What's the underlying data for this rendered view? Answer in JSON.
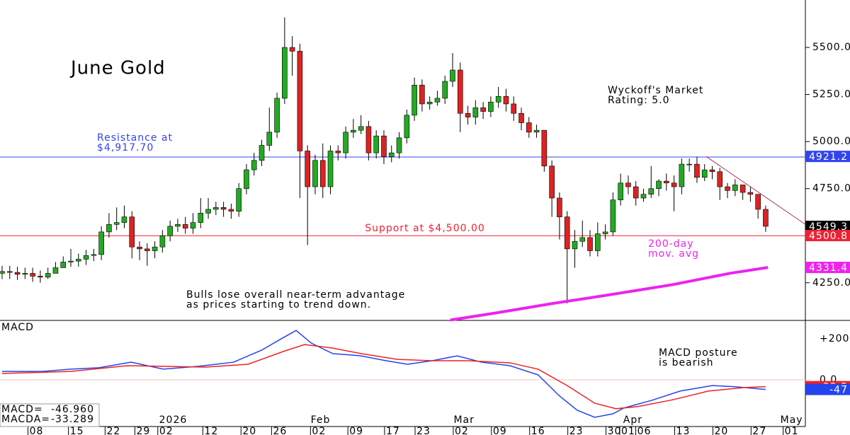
{
  "chart_data": {
    "type": "candlestick",
    "title": "June Gold",
    "xlim": [
      -0.278,
      105.2
    ],
    "xticks": [
      {
        "value": 4.5,
        "label": "08"
      },
      {
        "value": 9.8,
        "label": "15"
      },
      {
        "value": 14.6,
        "label": "22"
      },
      {
        "value": 18.5,
        "label": "29"
      },
      {
        "value": 21.5,
        "label": "02"
      },
      {
        "value": 27.4,
        "label": "12"
      },
      {
        "value": 32.4,
        "label": "20"
      },
      {
        "value": 36.4,
        "label": "26"
      },
      {
        "value": 41.5,
        "label": "02"
      },
      {
        "value": 46.4,
        "label": "09"
      },
      {
        "value": 51.2,
        "label": "17"
      },
      {
        "value": 55.2,
        "label": "23"
      },
      {
        "value": 60.2,
        "label": "02"
      },
      {
        "value": 65.2,
        "label": "09"
      },
      {
        "value": 70.2,
        "label": "16"
      },
      {
        "value": 75.2,
        "label": "23"
      },
      {
        "value": 80.2,
        "label": "30"
      },
      {
        "value": 82,
        "label": "01"
      },
      {
        "value": 84.1,
        "label": "06"
      },
      {
        "value": 89.2,
        "label": "13"
      },
      {
        "value": 94.2,
        "label": "20"
      },
      {
        "value": 99.2,
        "label": "27"
      },
      {
        "value": 103.4,
        "label": "01"
      }
    ],
    "months": [
      {
        "value": 22.4,
        "label": "2026"
      },
      {
        "value": 41.7,
        "label": "Feb"
      },
      {
        "value": 60.5,
        "label": "Mar"
      },
      {
        "value": 82.6,
        "label": "Apr"
      },
      {
        "value": 103.4,
        "label": "May"
      }
    ],
    "ylim": [
      4050,
      5752
    ],
    "yticks": [
      {
        "value": 5500,
        "label": "5500.0"
      },
      {
        "value": 5250,
        "label": "5250.0"
      },
      {
        "value": 5000,
        "label": "5000.0"
      },
      {
        "value": 4750,
        "label": "4750.0"
      },
      {
        "value": 4500,
        "label": "4500.0"
      },
      {
        "value": 4250,
        "label": "4250.0"
      }
    ],
    "up_color": "#22aa22",
    "down_color": "#dd2222",
    "open": [
      4300,
      4310,
      4305,
      4295,
      4300,
      4285,
      4280,
      4300,
      4330,
      4360,
      4365,
      4375,
      4395,
      4400,
      4520,
      4560,
      4570,
      4600,
      4440,
      4430,
      4420,
      4440,
      4500,
      4550,
      4560,
      4540,
      4570,
      4620,
      4640,
      4650,
      4640,
      4630,
      4750,
      4850,
      4900,
      4980,
      5050,
      5230,
      5500,
      5480,
      4950,
      4760,
      4900,
      4760,
      4950,
      4940,
      5050,
      5060,
      5080,
      4940,
      5030,
      4920,
      4940,
      5020,
      5140,
      5300,
      5200,
      5210,
      5230,
      5320,
      5380,
      5150,
      5130,
      5180,
      5160,
      5210,
      5240,
      5200,
      5150,
      5100,
      5050,
      5060,
      4870,
      4700,
      4600,
      4430,
      4470,
      4490,
      4420,
      4510,
      4520,
      4690,
      4780,
      4760,
      4700,
      4720,
      4750,
      4790,
      4780,
      4760,
      4880,
      4880,
      4810,
      4850,
      4840,
      4760,
      4740,
      4770,
      4730,
      4720,
      4640
    ],
    "high": [
      4340,
      4340,
      4335,
      4330,
      4330,
      4315,
      4330,
      4360,
      4390,
      4430,
      4405,
      4425,
      4430,
      4550,
      4620,
      4650,
      4660,
      4630,
      4470,
      4460,
      4470,
      4530,
      4580,
      4590,
      4600,
      4620,
      4700,
      4700,
      4680,
      4680,
      4670,
      4780,
      4880,
      4940,
      5010,
      5180,
      5260,
      5660,
      5560,
      5520,
      4980,
      4930,
      4990,
      4980,
      4980,
      5080,
      5120,
      5140,
      5110,
      5060,
      5060,
      4980,
      5050,
      5170,
      5340,
      5330,
      5240,
      5270,
      5350,
      5470,
      5420,
      5190,
      5220,
      5210,
      5240,
      5290,
      5280,
      5240,
      5180,
      5130,
      5090,
      5050,
      4900,
      4730,
      4630,
      4530,
      4580,
      4530,
      4570,
      4560,
      4730,
      4830,
      4820,
      4790,
      4750,
      4870,
      4800,
      4830,
      4820,
      4910,
      4910,
      4920,
      4880,
      4870,
      4860,
      4780,
      4800,
      4760,
      4760,
      4720,
      4660
    ],
    "low": [
      4270,
      4270,
      4265,
      4270,
      4255,
      4250,
      4270,
      4300,
      4330,
      4335,
      4335,
      4345,
      4365,
      4370,
      4490,
      4530,
      4540,
      4380,
      4370,
      4340,
      4380,
      4410,
      4470,
      4520,
      4510,
      4510,
      4540,
      4590,
      4610,
      4600,
      4590,
      4600,
      4720,
      4820,
      4870,
      4950,
      5020,
      5200,
      5350,
      4700,
      4450,
      4720,
      4700,
      4720,
      4900,
      4910,
      5020,
      5040,
      4900,
      4910,
      4880,
      4890,
      4910,
      4990,
      5110,
      5160,
      5170,
      5190,
      5200,
      5290,
      5050,
      5090,
      5090,
      5120,
      5130,
      5180,
      5160,
      5110,
      5060,
      5020,
      5020,
      4840,
      4600,
      4480,
      4140,
      4330,
      4440,
      4390,
      4390,
      4480,
      4500,
      4660,
      4720,
      4660,
      4680,
      4700,
      4710,
      4740,
      4630,
      4720,
      4840,
      4780,
      4790,
      4800,
      4690,
      4700,
      4710,
      4690,
      4680,
      4590,
      4520
    ],
    "close": [
      4310,
      4305,
      4295,
      4300,
      4285,
      4280,
      4300,
      4330,
      4360,
      4365,
      4375,
      4395,
      4400,
      4520,
      4560,
      4570,
      4600,
      4440,
      4430,
      4420,
      4440,
      4500,
      4550,
      4560,
      4540,
      4570,
      4620,
      4640,
      4650,
      4640,
      4630,
      4750,
      4850,
      4900,
      4980,
      5050,
      5230,
      5500,
      5480,
      4950,
      4760,
      4900,
      4760,
      4950,
      4940,
      5050,
      5060,
      5080,
      4940,
      5030,
      4920,
      4940,
      5020,
      5140,
      5300,
      5200,
      5210,
      5230,
      5320,
      5380,
      5150,
      5130,
      5180,
      5160,
      5210,
      5240,
      5200,
      5150,
      5100,
      5050,
      5060,
      4870,
      4700,
      4600,
      4430,
      4470,
      4490,
      4420,
      4510,
      4520,
      4690,
      4780,
      4760,
      4700,
      4720,
      4750,
      4790,
      4780,
      4760,
      4880,
      4880,
      4810,
      4850,
      4840,
      4760,
      4740,
      4770,
      4730,
      4720,
      4640,
      4550
    ],
    "ma200": {
      "color": "#ee22ee",
      "x": [
        58.7,
        64.7,
        72.1,
        78.6,
        87.8,
        95.3,
        100.3
      ],
      "values": [
        4052,
        4090,
        4140,
        4180,
        4240,
        4300,
        4331.4
      ]
    },
    "trendline": {
      "color": "#aa3355",
      "x": [
        92.2,
        105.2
      ],
      "values": [
        4921,
        4560
      ]
    },
    "levels": [
      {
        "value": 4917.7,
        "color": "#3344ee"
      },
      {
        "value": 4500,
        "color": "#ee2233"
      }
    ],
    "price_tags": [
      {
        "value": 4921.2,
        "color": "#3344ee"
      },
      {
        "value": 4549.3,
        "color": "#000000"
      },
      {
        "value": 4500.8,
        "color": "#ee2233"
      },
      {
        "value": 4331.4,
        "color": "#ee22ee"
      }
    ],
    "annotations": [
      {
        "lines": [
          "Resistance at",
          "$4,917.70"
        ],
        "color": "#3344ee"
      },
      {
        "lines": [
          "Support at $4,500.00"
        ],
        "color": "#ee2233"
      },
      {
        "lines": [
          "Wyckoff's Market",
          "Rating: 5.0"
        ],
        "color": "#000000"
      },
      {
        "lines": [
          "200-day",
          "mov. avg"
        ],
        "color": "#ee22ee"
      },
      {
        "lines": [
          "Bulls lose overall near-term advantage",
          "as prices starting to trend down."
        ],
        "color": "#000000"
      }
    ],
    "macd": {
      "title": "MACD",
      "ylim": [
        -228,
        290
      ],
      "yticks": [
        {
          "value": 200,
          "label": "+200.0"
        },
        {
          "value": 0,
          "label": "0.0"
        }
      ],
      "series": [
        {
          "name": "MACD",
          "color": "#2244ee",
          "x": [
            0,
            5.3,
            9,
            12.7,
            16.9,
            21.1,
            25.7,
            30.3,
            34,
            36.4,
            38.5,
            40.5,
            43.3,
            47,
            50.3,
            53.1,
            56.3,
            59.6,
            62.8,
            66.5,
            70.2,
            73,
            75.3,
            77.6,
            80,
            81.4,
            85.1,
            88.8,
            93,
            96.2,
            100
          ],
          "values": [
            41,
            41,
            52,
            59,
            86,
            52,
            66,
            86,
            145,
            197,
            241,
            179,
            128,
            117,
            93,
            76,
            93,
            117,
            86,
            69,
            24,
            -79,
            -148,
            -183,
            -166,
            -138,
            -100,
            -55,
            -28,
            -34,
            -46.96
          ]
        },
        {
          "name": "MACDA",
          "color": "#ee2222",
          "x": [
            0,
            9,
            16.4,
            21.1,
            26.6,
            32.2,
            36.8,
            39.6,
            43.3,
            47,
            51.7,
            56.3,
            61,
            66.5,
            70.2,
            74,
            77.6,
            80.4,
            83.2,
            87.9,
            92.5,
            97.1,
            100
          ],
          "values": [
            31,
            41,
            69,
            66,
            62,
            76,
            138,
            172,
            155,
            128,
            100,
            93,
            93,
            83,
            52,
            -28,
            -114,
            -141,
            -131,
            -97,
            -55,
            -38,
            -33.289
          ]
        }
      ],
      "tags": [
        {
          "value": -33.3,
          "color": "#ee2222"
        },
        {
          "value": -47.0,
          "color": "#2244ee"
        }
      ],
      "readout": [
        {
          "name": "MACD=",
          "value": -46.96,
          "label": "-46.960"
        },
        {
          "name": "MACDA=",
          "value": -33.289,
          "label": "-33.289"
        }
      ],
      "annotation": [
        "MACD posture",
        "is bearish"
      ]
    }
  }
}
